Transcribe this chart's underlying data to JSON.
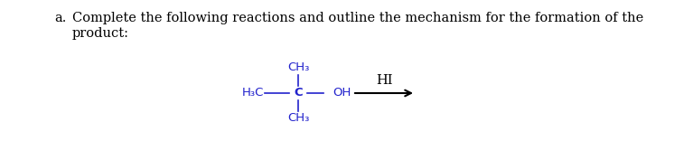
{
  "background_color": "#ffffff",
  "label_a": "a.",
  "text_line1": "Complete the following reactions and outline the mechanism for the formation of the",
  "text_line2": "product:",
  "text_fontsize": 10.5,
  "text_color": "#000000",
  "struct_color": "#2222cc",
  "ch3_top": "CH₃",
  "main_left": "H₃C",
  "main_c": "C",
  "main_oh": "OH",
  "ch3_bot": "CH₃",
  "hi_text": "HI",
  "fontsize_struct": 9.5,
  "fontsize_hi": 10.5,
  "arrow_color": "#000000"
}
